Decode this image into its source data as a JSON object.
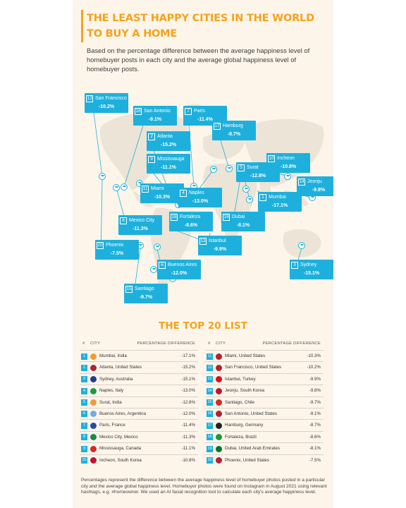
{
  "title": "THE LEAST HAPPY CITIES IN THE WORLD TO BUY A HOME",
  "subtitle": "Based on the percentage difference between the average happiness level of homebuyer posts in each city and the average global happiness level of homebuyer posts.",
  "map_labels": [
    {
      "rank": "12",
      "city": "San Francisco",
      "pct": "-10.2%"
    },
    {
      "rank": "16",
      "city": "San Antonio",
      "pct": "-9.1%"
    },
    {
      "rank": "7",
      "city": "Paris",
      "pct": "-11.4%"
    },
    {
      "rank": "17",
      "city": "Hamburg",
      "pct": "-8.7%"
    },
    {
      "rank": "2",
      "city": "Atlanta",
      "pct": "-15.2%"
    },
    {
      "rank": "9",
      "city": "Mississauga",
      "pct": "-11.1%"
    },
    {
      "rank": "10",
      "city": "Incheon",
      "pct": "-10.8%"
    },
    {
      "rank": "5",
      "city": "Surat",
      "pct": "-12.8%"
    },
    {
      "rank": "14",
      "city": "Jeonju",
      "pct": "-9.8%"
    },
    {
      "rank": "11",
      "city": "Miami",
      "pct": "-10.3%"
    },
    {
      "rank": "4",
      "city": "Naples",
      "pct": "-13.0%"
    },
    {
      "rank": "1",
      "city": "Mumbai",
      "pct": "-17.1%"
    },
    {
      "rank": "8",
      "city": "Mexico City",
      "pct": "-11.3%"
    },
    {
      "rank": "18",
      "city": "Fortaleza",
      "pct": "-8.6%"
    },
    {
      "rank": "19",
      "city": "Dubai",
      "pct": "-8.1%"
    },
    {
      "rank": "20",
      "city": "Phoenix",
      "pct": "-7.5%"
    },
    {
      "rank": "13",
      "city": "Istanbul",
      "pct": "-9.9%"
    },
    {
      "rank": "6",
      "city": "Buenos Aires",
      "pct": "-12.0%"
    },
    {
      "rank": "3",
      "city": "Sydney",
      "pct": "-15.1%"
    },
    {
      "rank": "15",
      "city": "Santiago",
      "pct": "-9.7%"
    }
  ],
  "list": {
    "title": "THE TOP 20 LIST",
    "col_rank": "#",
    "col_city": "CITY",
    "col_diff": "PERCENTAGE DIFFERENCE",
    "left": [
      {
        "rank": "1",
        "flag": "in",
        "name": "Mumbai, India",
        "diff": "-17.1%"
      },
      {
        "rank": "2",
        "flag": "us",
        "name": "Atlanta, United States",
        "diff": "-15.2%"
      },
      {
        "rank": "3",
        "flag": "au",
        "name": "Sydney, Australia",
        "diff": "-15.1%"
      },
      {
        "rank": "4",
        "flag": "it",
        "name": "Naples, Italy",
        "diff": "-13.0%"
      },
      {
        "rank": "5",
        "flag": "in",
        "name": "Surat, India",
        "diff": "-12.8%"
      },
      {
        "rank": "6",
        "flag": "ar",
        "name": "Buenos Aires, Argentina",
        "diff": "-12.0%"
      },
      {
        "rank": "7",
        "flag": "fr",
        "name": "Paris, France",
        "diff": "-11.4%"
      },
      {
        "rank": "8",
        "flag": "mx",
        "name": "Mexico City, Mexico",
        "diff": "-11.3%"
      },
      {
        "rank": "9",
        "flag": "ca",
        "name": "Mississauga, Canada",
        "diff": "-11.1%"
      },
      {
        "rank": "10",
        "flag": "kr",
        "name": "Incheon, South Korea",
        "diff": "-10.8%"
      }
    ],
    "right": [
      {
        "rank": "11",
        "flag": "us",
        "name": "Miami, United States",
        "diff": "-10.3%"
      },
      {
        "rank": "12",
        "flag": "us",
        "name": "San Francisco, United States",
        "diff": "-10.2%"
      },
      {
        "rank": "13",
        "flag": "tr",
        "name": "Istanbul, Turkey",
        "diff": "-9.9%"
      },
      {
        "rank": "14",
        "flag": "kr",
        "name": "Jeonju, South Korea",
        "diff": "-9.8%"
      },
      {
        "rank": "15",
        "flag": "cl",
        "name": "Santiago, Chile",
        "diff": "-9.7%"
      },
      {
        "rank": "16",
        "flag": "us",
        "name": "San Antonio, United States",
        "diff": "-9.1%"
      },
      {
        "rank": "17",
        "flag": "de",
        "name": "Hamburg, Germany",
        "diff": "-8.7%"
      },
      {
        "rank": "18",
        "flag": "br",
        "name": "Fortaleza, Brazil",
        "diff": "-8.6%"
      },
      {
        "rank": "19",
        "flag": "ae",
        "name": "Dubai, United Arab Emirates",
        "diff": "-8.1%"
      },
      {
        "rank": "20",
        "flag": "us",
        "name": "Phoenix, United States",
        "diff": "-7.5%"
      }
    ]
  },
  "footnote": "Percentages represent the difference between the average happiness level of homebuyer photos posted in a particular city and the average global happiness level. Homebuyer photos were found on Instagram in August 2021 using relevant hashtags, e.g. #homeowner. We used an AI facial recognition tool to calculate each city's average happiness level.",
  "colors": {
    "accent": "#f3a31b",
    "label": "#1eb0dc",
    "background": "#fdf5ea",
    "land": "#ece4d6"
  },
  "flag_colors": {
    "in": "#f39a32",
    "us": "#b22234",
    "au": "#1f3f8a",
    "it": "#1a9a4a",
    "ar": "#74acdf",
    "fr": "#2a49a8",
    "mx": "#1a8a4a",
    "ca": "#d52b1e",
    "kr": "#c8102e",
    "tr": "#e30a17",
    "cl": "#d52b1e",
    "de": "#222222",
    "br": "#1a9a3a",
    "ae": "#00732f"
  }
}
